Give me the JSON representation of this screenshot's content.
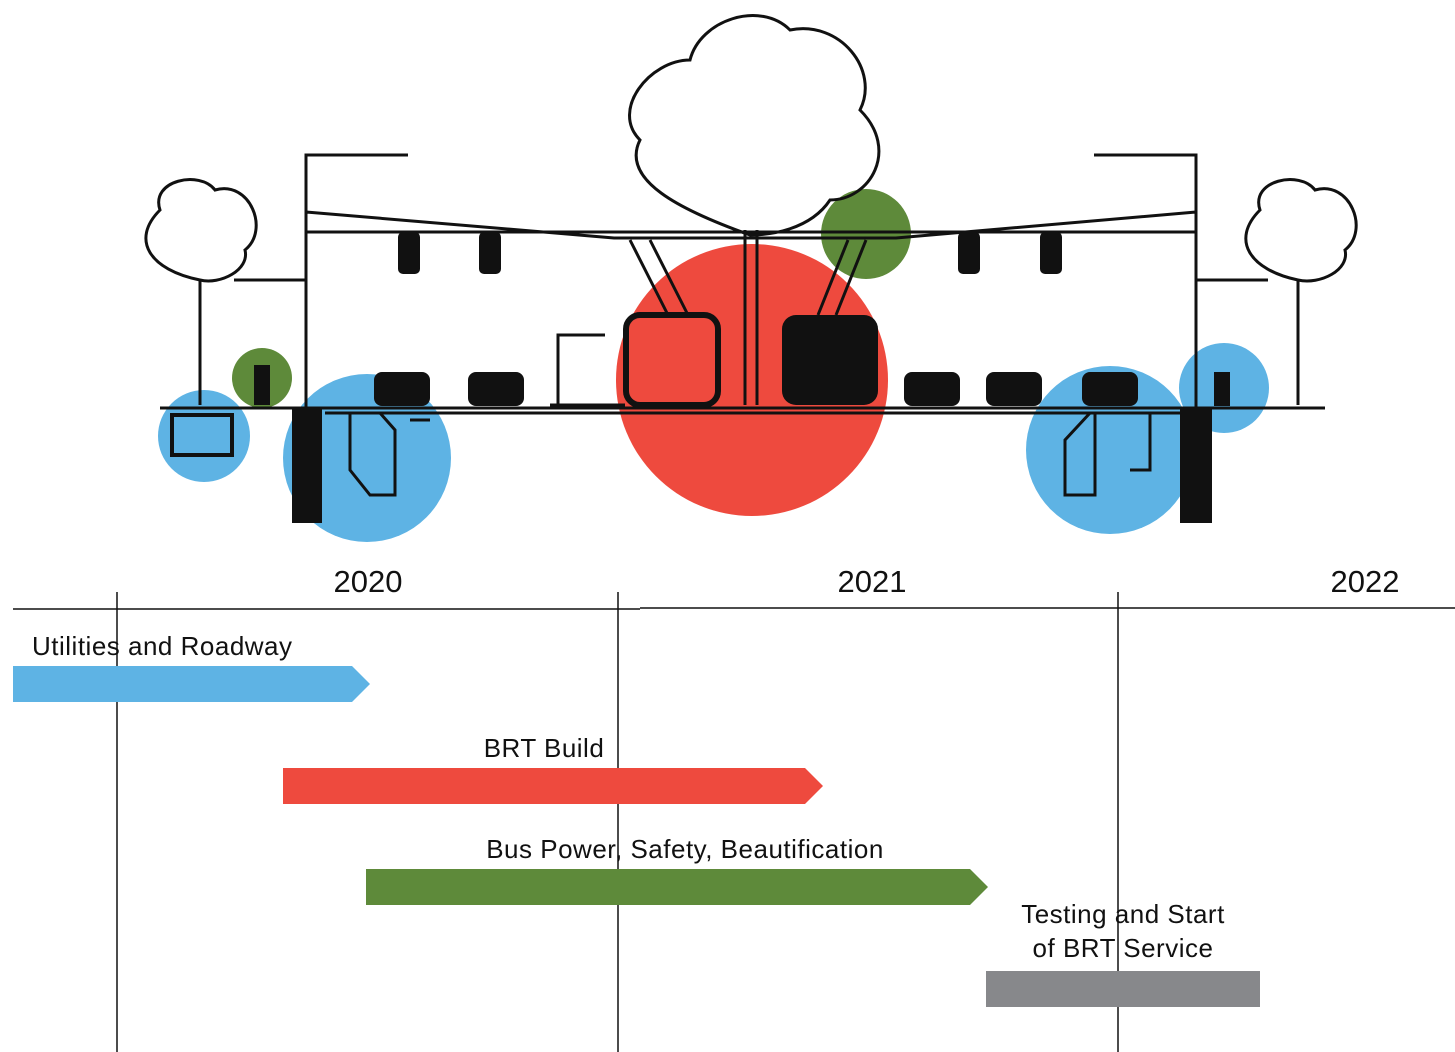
{
  "timeline": {
    "years": [
      "2020",
      "2021",
      "2022"
    ],
    "phases": [
      {
        "label": [
          "Utilities and Roadway"
        ],
        "color": "#5eb3e4"
      },
      {
        "label": [
          "BRT Build"
        ],
        "color": "#ee4a3e"
      },
      {
        "label": [
          "Bus Power, Safety, Beautification"
        ],
        "color": "#5e8a3a"
      },
      {
        "label": [
          "Testing and Start",
          "of BRT Service"
        ],
        "color": "#87888b"
      }
    ]
  }
}
